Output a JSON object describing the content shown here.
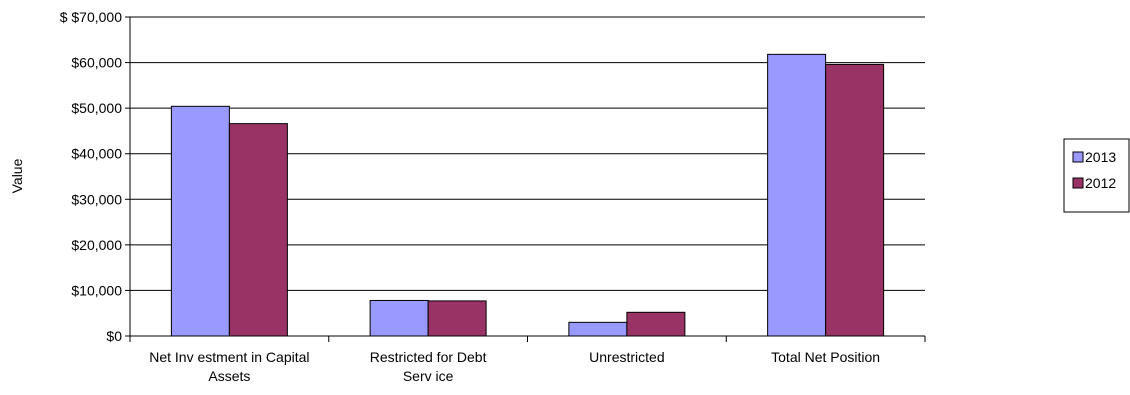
{
  "chart_data": {
    "type": "bar",
    "categories": [
      [
        "Net Inv estment in Capital",
        "Assets"
      ],
      [
        "Restricted for Debt",
        "Serv ice"
      ],
      [
        "Unrestricted"
      ],
      [
        "Total Net Position"
      ]
    ],
    "series": [
      {
        "name": "2013",
        "color": "#9999ff",
        "values": [
          50400,
          7800,
          3000,
          61800
        ]
      },
      {
        "name": "2012",
        "color": "#993366",
        "values": [
          46600,
          7700,
          5200,
          59600
        ]
      }
    ],
    "ylabel": "Value",
    "ylim": [
      0,
      70000
    ],
    "y_ticks": [
      0,
      10000,
      20000,
      30000,
      40000,
      50000,
      60000,
      70000
    ],
    "y_tick_labels": [
      "$0",
      "$10,000",
      "$20,000",
      "$30,000",
      "$40,000",
      "$50,000",
      "$60,000",
      "$ $70,000"
    ],
    "grid": true,
    "legend": "right"
  }
}
